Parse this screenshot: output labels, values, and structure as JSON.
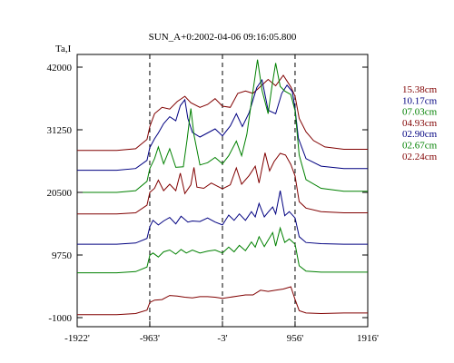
{
  "chart_data": {
    "type": "line",
    "title": "SUN_A+0:2002-04-06 09:16:05.800",
    "ylabel": "Ta,I",
    "xlabel": "",
    "xlim": [
      -1922,
      1916
    ],
    "ylim": [
      -1000,
      45000
    ],
    "x_ticks": [
      {
        "value": -1922,
        "label": "-1922'"
      },
      {
        "value": -963,
        "label": "-963'"
      },
      {
        "value": -3,
        "label": "-3'"
      },
      {
        "value": 956,
        "label": "956'"
      },
      {
        "value": 1916,
        "label": "1916'"
      }
    ],
    "y_ticks": [
      {
        "value": 42000,
        "label": "42000"
      },
      {
        "value": 31250,
        "label": "31250"
      },
      {
        "value": 20500,
        "label": "20500"
      },
      {
        "value": 9750,
        "label": "9750"
      },
      {
        "value": -1000,
        "label": "-1000"
      }
    ],
    "reference_lines_x": [
      -963,
      -3,
      956
    ],
    "legend_position": "right",
    "series": [
      {
        "name": "15.38cm",
        "color": "#800000",
        "points": [
          [
            -1922,
            27700
          ],
          [
            -1400,
            27700
          ],
          [
            -1150,
            28000
          ],
          [
            -1000,
            29600
          ],
          [
            -963,
            31800
          ],
          [
            -900,
            34000
          ],
          [
            -800,
            35100
          ],
          [
            -700,
            34800
          ],
          [
            -600,
            36100
          ],
          [
            -500,
            37000
          ],
          [
            -420,
            35900
          ],
          [
            -300,
            35100
          ],
          [
            -200,
            35600
          ],
          [
            -100,
            36600
          ],
          [
            -3,
            35300
          ],
          [
            100,
            35100
          ],
          [
            200,
            37500
          ],
          [
            300,
            37900
          ],
          [
            400,
            37500
          ],
          [
            500,
            38700
          ],
          [
            600,
            39900
          ],
          [
            700,
            38800
          ],
          [
            800,
            40600
          ],
          [
            900,
            38600
          ],
          [
            956,
            37000
          ],
          [
            1010,
            33200
          ],
          [
            1100,
            30900
          ],
          [
            1200,
            29400
          ],
          [
            1350,
            28300
          ],
          [
            1600,
            27900
          ],
          [
            1916,
            27900
          ]
        ]
      },
      {
        "name": "10.17cm",
        "color": "#000080",
        "points": [
          [
            -1922,
            24300
          ],
          [
            -1400,
            24300
          ],
          [
            -1150,
            24600
          ],
          [
            -1000,
            26000
          ],
          [
            -963,
            28200
          ],
          [
            -900,
            29700
          ],
          [
            -850,
            30700
          ],
          [
            -780,
            32300
          ],
          [
            -700,
            33500
          ],
          [
            -620,
            32800
          ],
          [
            -560,
            35400
          ],
          [
            -500,
            36400
          ],
          [
            -460,
            33200
          ],
          [
            -400,
            30800
          ],
          [
            -300,
            30000
          ],
          [
            -200,
            30700
          ],
          [
            -100,
            31400
          ],
          [
            -3,
            30200
          ],
          [
            100,
            31900
          ],
          [
            180,
            34000
          ],
          [
            260,
            31800
          ],
          [
            350,
            34200
          ],
          [
            450,
            38500
          ],
          [
            520,
            39800
          ],
          [
            600,
            34600
          ],
          [
            700,
            34000
          ],
          [
            780,
            37500
          ],
          [
            850,
            38900
          ],
          [
            920,
            37800
          ],
          [
            956,
            34800
          ],
          [
            1000,
            29800
          ],
          [
            1100,
            26300
          ],
          [
            1300,
            25000
          ],
          [
            1600,
            24600
          ],
          [
            1916,
            24600
          ]
        ]
      },
      {
        "name": "07.03cm",
        "color": "#008000",
        "points": [
          [
            -1922,
            20500
          ],
          [
            -1400,
            20500
          ],
          [
            -1150,
            20800
          ],
          [
            -1000,
            22400
          ],
          [
            -963,
            24600
          ],
          [
            -900,
            26300
          ],
          [
            -850,
            28300
          ],
          [
            -780,
            25400
          ],
          [
            -700,
            28000
          ],
          [
            -620,
            24800
          ],
          [
            -520,
            24900
          ],
          [
            -470,
            29600
          ],
          [
            -420,
            34900
          ],
          [
            -380,
            30400
          ],
          [
            -300,
            25200
          ],
          [
            -200,
            25600
          ],
          [
            -100,
            26500
          ],
          [
            -3,
            25400
          ],
          [
            80,
            26800
          ],
          [
            180,
            29300
          ],
          [
            250,
            26800
          ],
          [
            320,
            30500
          ],
          [
            400,
            37900
          ],
          [
            460,
            43300
          ],
          [
            520,
            38000
          ],
          [
            600,
            34000
          ],
          [
            650,
            38600
          ],
          [
            700,
            42700
          ],
          [
            760,
            38700
          ],
          [
            820,
            37900
          ],
          [
            900,
            37300
          ],
          [
            956,
            34500
          ],
          [
            1010,
            26900
          ],
          [
            1100,
            22700
          ],
          [
            1300,
            21200
          ],
          [
            1600,
            20700
          ],
          [
            1916,
            20700
          ]
        ]
      },
      {
        "name": "04.93cm",
        "color": "#800000",
        "points": [
          [
            -1922,
            16800
          ],
          [
            -1400,
            16800
          ],
          [
            -1150,
            17000
          ],
          [
            -1000,
            18300
          ],
          [
            -963,
            20500
          ],
          [
            -900,
            21200
          ],
          [
            -850,
            22600
          ],
          [
            -780,
            20800
          ],
          [
            -700,
            21900
          ],
          [
            -620,
            20800
          ],
          [
            -560,
            23800
          ],
          [
            -500,
            20300
          ],
          [
            -420,
            21800
          ],
          [
            -380,
            24800
          ],
          [
            -340,
            21400
          ],
          [
            -250,
            21200
          ],
          [
            -150,
            22100
          ],
          [
            -3,
            21100
          ],
          [
            100,
            21800
          ],
          [
            180,
            24700
          ],
          [
            250,
            21900
          ],
          [
            350,
            23400
          ],
          [
            430,
            25000
          ],
          [
            480,
            22100
          ],
          [
            560,
            27300
          ],
          [
            620,
            24200
          ],
          [
            680,
            25800
          ],
          [
            760,
            27200
          ],
          [
            830,
            26900
          ],
          [
            900,
            25300
          ],
          [
            956,
            23300
          ],
          [
            1010,
            18900
          ],
          [
            1100,
            17800
          ],
          [
            1300,
            17200
          ],
          [
            1600,
            17000
          ],
          [
            1916,
            17000
          ]
        ]
      },
      {
        "name": "02.90cm",
        "color": "#000080",
        "points": [
          [
            -1922,
            11600
          ],
          [
            -1400,
            11600
          ],
          [
            -1150,
            11800
          ],
          [
            -1000,
            12600
          ],
          [
            -963,
            14600
          ],
          [
            -920,
            15700
          ],
          [
            -850,
            14900
          ],
          [
            -780,
            15600
          ],
          [
            -700,
            16200
          ],
          [
            -620,
            15100
          ],
          [
            -550,
            16400
          ],
          [
            -460,
            15400
          ],
          [
            -400,
            15600
          ],
          [
            -300,
            15500
          ],
          [
            -200,
            16100
          ],
          [
            -100,
            15400
          ],
          [
            -3,
            14900
          ],
          [
            80,
            16600
          ],
          [
            150,
            15700
          ],
          [
            220,
            16800
          ],
          [
            300,
            15700
          ],
          [
            380,
            17200
          ],
          [
            430,
            16300
          ],
          [
            480,
            18600
          ],
          [
            550,
            16300
          ],
          [
            600,
            17100
          ],
          [
            660,
            18000
          ],
          [
            700,
            16800
          ],
          [
            760,
            20800
          ],
          [
            820,
            16500
          ],
          [
            880,
            17200
          ],
          [
            956,
            16100
          ],
          [
            1010,
            12900
          ],
          [
            1100,
            11900
          ],
          [
            1300,
            11700
          ],
          [
            1600,
            11600
          ],
          [
            1916,
            11600
          ]
        ]
      },
      {
        "name": "02.67cm",
        "color": "#008000",
        "points": [
          [
            -1922,
            6700
          ],
          [
            -1400,
            6700
          ],
          [
            -1150,
            6900
          ],
          [
            -1000,
            7700
          ],
          [
            -963,
            9700
          ],
          [
            -920,
            10100
          ],
          [
            -850,
            9400
          ],
          [
            -780,
            10300
          ],
          [
            -700,
            10600
          ],
          [
            -620,
            9900
          ],
          [
            -550,
            10700
          ],
          [
            -480,
            10100
          ],
          [
            -400,
            10600
          ],
          [
            -300,
            10100
          ],
          [
            -200,
            10400
          ],
          [
            -100,
            10600
          ],
          [
            -3,
            10100
          ],
          [
            80,
            11100
          ],
          [
            150,
            10300
          ],
          [
            220,
            11400
          ],
          [
            300,
            10500
          ],
          [
            380,
            12000
          ],
          [
            430,
            11100
          ],
          [
            480,
            12900
          ],
          [
            550,
            11200
          ],
          [
            600,
            12300
          ],
          [
            660,
            13600
          ],
          [
            700,
            11300
          ],
          [
            760,
            14400
          ],
          [
            820,
            11900
          ],
          [
            880,
            12500
          ],
          [
            956,
            11600
          ],
          [
            1010,
            7900
          ],
          [
            1100,
            7000
          ],
          [
            1300,
            6800
          ],
          [
            1600,
            6800
          ],
          [
            1916,
            6800
          ]
        ]
      },
      {
        "name": "02.24cm",
        "color": "#800000",
        "points": [
          [
            -1922,
            -500
          ],
          [
            -1400,
            -500
          ],
          [
            -1150,
            -300
          ],
          [
            -1000,
            300
          ],
          [
            -963,
            1600
          ],
          [
            -900,
            2000
          ],
          [
            -800,
            2100
          ],
          [
            -700,
            2800
          ],
          [
            -600,
            2700
          ],
          [
            -500,
            2500
          ],
          [
            -400,
            2400
          ],
          [
            -300,
            2600
          ],
          [
            -200,
            2600
          ],
          [
            -100,
            2500
          ],
          [
            -3,
            2300
          ],
          [
            100,
            2500
          ],
          [
            200,
            2700
          ],
          [
            300,
            2900
          ],
          [
            400,
            2900
          ],
          [
            500,
            3700
          ],
          [
            600,
            3500
          ],
          [
            700,
            3700
          ],
          [
            800,
            3900
          ],
          [
            900,
            4300
          ],
          [
            956,
            2100
          ],
          [
            1010,
            200
          ],
          [
            1100,
            -200
          ],
          [
            1300,
            -300
          ],
          [
            1600,
            -200
          ],
          [
            1916,
            -200
          ]
        ]
      }
    ]
  }
}
